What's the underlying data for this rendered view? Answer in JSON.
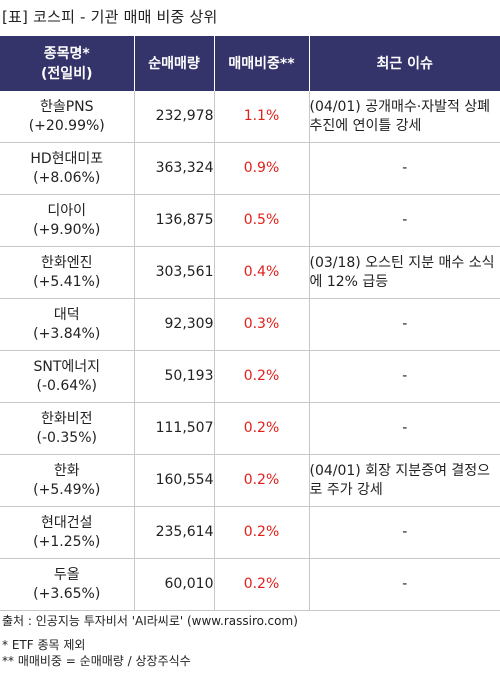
{
  "title": "[표] 코스피 - 기관 매매 비중 상위",
  "columns": {
    "name_line1": "종목명*",
    "name_line2": "(전일비)",
    "volume": "순매매량",
    "ratio": "매매비중**",
    "issue": "최근 이슈"
  },
  "rows": [
    {
      "name": "한솔PNS",
      "change": "(+20.99%)",
      "volume": "232,978",
      "ratio": "1.1%",
      "issue": "(04/01) 공개매수·자발적 상폐 추진에 연이틀 강세"
    },
    {
      "name": "HD현대미포",
      "change": "(+8.06%)",
      "volume": "363,324",
      "ratio": "0.9%",
      "issue": "-"
    },
    {
      "name": "디아이",
      "change": "(+9.90%)",
      "volume": "136,875",
      "ratio": "0.5%",
      "issue": "-"
    },
    {
      "name": "한화엔진",
      "change": "(+5.41%)",
      "volume": "303,561",
      "ratio": "0.4%",
      "issue": "(03/18) 오스틴 지분 매수 소식에 12% 급등"
    },
    {
      "name": "대덕",
      "change": "(+3.84%)",
      "volume": "92,309",
      "ratio": "0.3%",
      "issue": "-"
    },
    {
      "name": "SNT에너지",
      "change": "(-0.64%)",
      "volume": "50,193",
      "ratio": "0.2%",
      "issue": "-"
    },
    {
      "name": "한화비전",
      "change": "(-0.35%)",
      "volume": "111,507",
      "ratio": "0.2%",
      "issue": "-"
    },
    {
      "name": "한화",
      "change": "(+5.49%)",
      "volume": "160,554",
      "ratio": "0.2%",
      "issue": "(04/01) 회장 지분증여 결정으로 주가 강세"
    },
    {
      "name": "현대건설",
      "change": "(+1.25%)",
      "volume": "235,614",
      "ratio": "0.2%",
      "issue": "-"
    },
    {
      "name": "두올",
      "change": "(+3.65%)",
      "volume": "60,010",
      "ratio": "0.2%",
      "issue": "-"
    }
  ],
  "footer": {
    "source": "출처 : 인공지능 투자비서 'AI라씨로' (www.rassiro.com)",
    "note1": "* ETF 종목 제외",
    "note2": "** 매매비중 = 순매매량 / 상장주식수"
  },
  "colors": {
    "header_bg": "#35346a",
    "ratio_text": "#e0201b"
  }
}
